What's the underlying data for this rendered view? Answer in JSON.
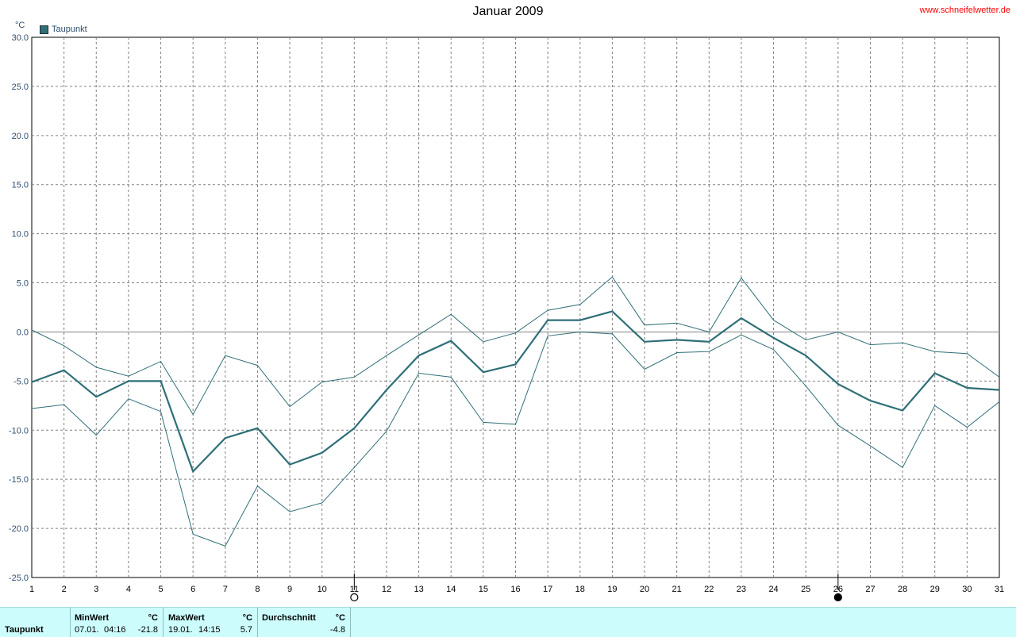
{
  "header": {
    "title": "Januar 2009",
    "site": "www.schneifelwetter.de",
    "unit_label": "°C",
    "legend_label": "Taupunkt"
  },
  "colors": {
    "series": "#2f6f78",
    "zero_line": "#aaaaaa",
    "grid": "#808080",
    "footer_bg": "#ccfcfc",
    "site_text": "#ff0000"
  },
  "chart_data": {
    "type": "line",
    "title": "Januar 2009",
    "ylabel": "°C",
    "ylim": [
      -25,
      30
    ],
    "yticks": [
      "30.0",
      "25.0",
      "20.0",
      "15.0",
      "10.0",
      "5.0",
      "0.0",
      "-5.0",
      "-10.0",
      "-15.0",
      "-20.0",
      "-25.0"
    ],
    "x": [
      1,
      2,
      3,
      4,
      5,
      6,
      7,
      8,
      9,
      10,
      11,
      12,
      13,
      14,
      15,
      16,
      17,
      18,
      19,
      20,
      21,
      22,
      23,
      24,
      25,
      26,
      27,
      28,
      29,
      30,
      31
    ],
    "series": [
      {
        "name": "Taupunkt",
        "role": "mean",
        "values": [
          -5.1,
          -3.9,
          -6.6,
          -5.0,
          -5.0,
          -14.2,
          -10.8,
          -9.8,
          -13.5,
          -12.3,
          -9.8,
          -5.9,
          -2.4,
          -0.9,
          -4.1,
          -3.3,
          1.2,
          1.2,
          2.1,
          -1.0,
          -0.8,
          -1.0,
          1.4,
          -0.6,
          -2.4,
          -5.3,
          -7.0,
          -8.0,
          -4.2,
          -5.7,
          -5.9
        ]
      },
      {
        "role": "max",
        "values": [
          0.2,
          -1.4,
          -3.6,
          -4.5,
          -3.0,
          -8.4,
          -2.4,
          -3.4,
          -7.6,
          -5.1,
          -4.6,
          -2.4,
          -0.3,
          1.8,
          -1.0,
          -0.1,
          2.2,
          2.8,
          5.6,
          0.7,
          0.9,
          0.0,
          5.5,
          1.2,
          -0.8,
          0.0,
          -1.3,
          -1.1,
          -2.0,
          -2.2,
          -4.6
        ]
      },
      {
        "role": "min",
        "values": [
          -7.8,
          -7.4,
          -10.5,
          -6.8,
          -8.1,
          -20.6,
          -21.8,
          -15.7,
          -18.3,
          -17.4,
          -13.8,
          -10.1,
          -4.2,
          -4.6,
          -9.2,
          -9.4,
          -0.4,
          0.0,
          -0.2,
          -3.8,
          -2.1,
          -2.0,
          -0.3,
          -1.8,
          -5.5,
          -9.5,
          -11.6,
          -13.8,
          -7.5,
          -9.7,
          -7.1
        ]
      }
    ],
    "zero_line": true,
    "grid": true,
    "legend": "top-left",
    "moon_phases": [
      {
        "day": 11,
        "symbol": "full-moon-icon"
      },
      {
        "day": 26,
        "symbol": "new-moon-icon"
      }
    ]
  },
  "footer": {
    "row_label": "Taupunkt",
    "min": {
      "label": "MinWert",
      "unit": "°C",
      "date": "07.01.",
      "time": "04:16",
      "value": "-21.8"
    },
    "max": {
      "label": "MaxWert",
      "unit": "°C",
      "date": "19.01.",
      "time": "14:15",
      "value": "5.7"
    },
    "avg": {
      "label": "Durchschnitt",
      "unit": "°C",
      "value": "-4.8"
    }
  }
}
